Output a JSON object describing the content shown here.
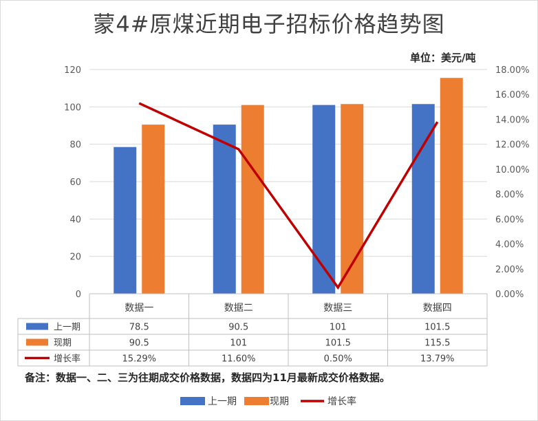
{
  "chart_data": {
    "type": "bar",
    "title": "蒙4#原煤近期电子招标价格趋势图",
    "unit": "单位：美元/吨",
    "categories": [
      "数据一",
      "数据二",
      "数据三",
      "数据四"
    ],
    "series": [
      {
        "name": "上一期",
        "type": "bar",
        "axis": "left",
        "color": "#4472C4",
        "values": [
          78.5,
          90.5,
          101,
          101.5
        ],
        "labels": [
          "78.5",
          "90.5",
          "101",
          "101.5"
        ]
      },
      {
        "name": "现期",
        "type": "bar",
        "axis": "left",
        "color": "#ED7D31",
        "values": [
          90.5,
          101,
          101.5,
          115.5
        ],
        "labels": [
          "90.5",
          "101",
          "101.5",
          "115.5"
        ]
      },
      {
        "name": "增长率",
        "type": "line",
        "axis": "right",
        "color": "#C00000",
        "values": [
          15.29,
          11.6,
          0.5,
          13.79
        ],
        "labels": [
          "15.29%",
          "11.60%",
          "0.50%",
          "13.79%"
        ]
      }
    ],
    "y_left": {
      "min": 0,
      "max": 120,
      "step": 20,
      "ticks": [
        "0",
        "20",
        "40",
        "60",
        "80",
        "100",
        "120"
      ]
    },
    "y_right": {
      "min": 0,
      "max": 18,
      "step": 2,
      "ticks": [
        "0.00%",
        "2.00%",
        "4.00%",
        "6.00%",
        "8.00%",
        "10.00%",
        "12.00%",
        "14.00%",
        "16.00%",
        "18.00%"
      ]
    },
    "grid": true,
    "legend_position": "bottom",
    "note": "备注：数据一、二、三为往期成交价格数据，数据四为11月最新成交价格数据。"
  }
}
